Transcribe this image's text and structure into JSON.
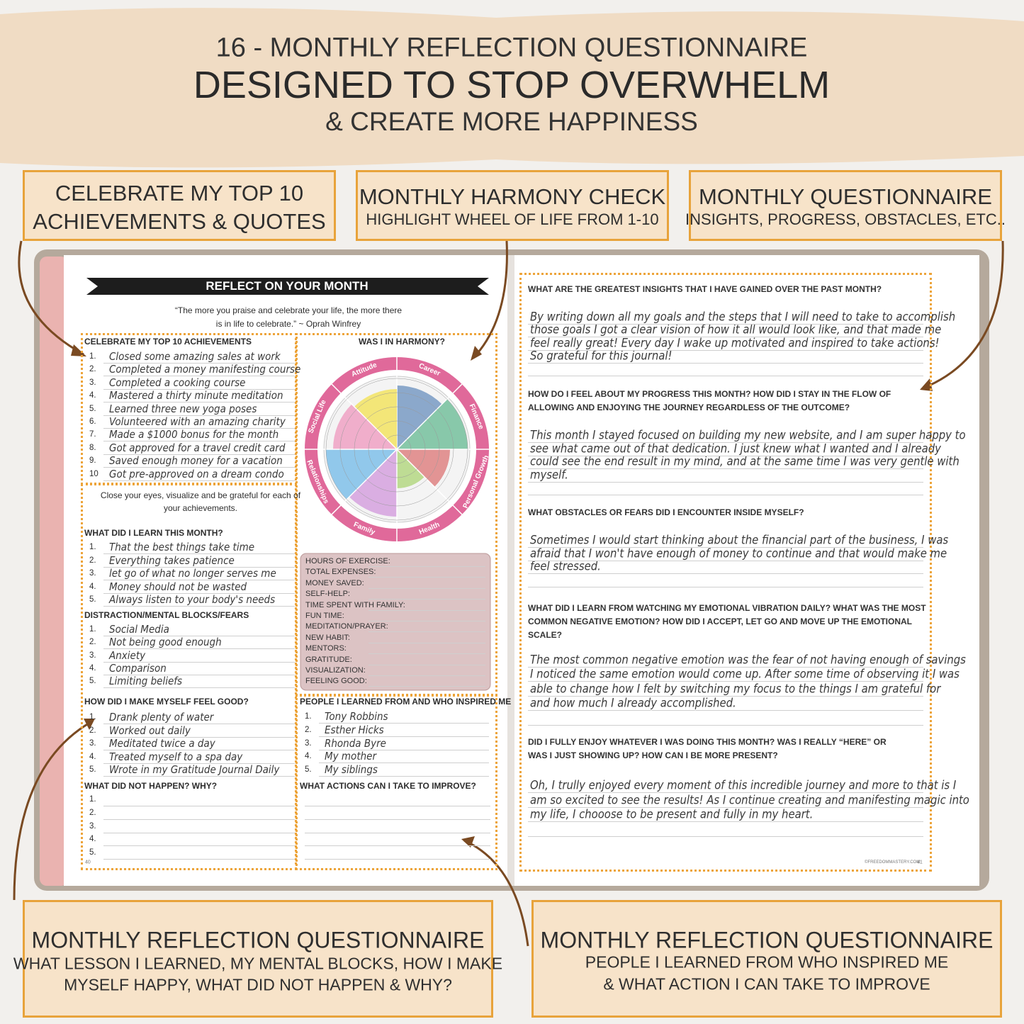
{
  "header": {
    "line1": "16 - MONTHLY REFLECTION QUESTIONNAIRE",
    "line2": "DESIGNED TO STOP OVERWHELM",
    "line3": "& CREATE MORE HAPPINESS"
  },
  "top_callouts": [
    {
      "title_lines": [
        "CELEBRATE MY TOP 10",
        "ACHIEVEMENTS & QUOTES"
      ],
      "subtitle_lines": []
    },
    {
      "title_lines": [
        "MONTHLY HARMONY CHECK"
      ],
      "subtitle_lines": [
        "HIGHLIGHT WHEEL OF LIFE FROM 1-10"
      ]
    },
    {
      "title_lines": [
        "MONTHLY QUESTIONNAIRE"
      ],
      "subtitle_lines": [
        "INSIGHTS, PROGRESS, OBSTACLES, ETC.."
      ]
    }
  ],
  "bottom_callouts": [
    {
      "title_lines": [
        "MONTHLY REFLECTION QUESTIONNAIRE"
      ],
      "subtitle_lines": [
        "WHAT LESSON I LEARNED, MY MENTAL BLOCKS, HOW I MAKE",
        "MYSELF HAPPY, WHAT DID NOT HAPPEN & WHY?"
      ]
    },
    {
      "title_lines": [
        "MONTHLY REFLECTION QUESTIONNAIRE"
      ],
      "subtitle_lines": [
        "PEOPLE I LEARNED FROM WHO INSPIRED ME",
        "& WHAT ACTION I CAN TAKE TO IMPROVE"
      ]
    }
  ],
  "left_page": {
    "banner": "REFLECT ON YOUR MONTH",
    "quote_lines": [
      "“The more you praise and celebrate your life, the more there",
      "is in life to celebrate.” ~ Oprah Winfrey"
    ],
    "achievements": {
      "heading": "CELEBRATE MY TOP 10 ACHIEVEMENTS",
      "items": [
        {
          "n": "1.",
          "text": "Closed some amazing sales at work"
        },
        {
          "n": "2.",
          "text": "Completed a money manifesting course"
        },
        {
          "n": "3.",
          "text": "Completed a cooking course"
        },
        {
          "n": "4.",
          "text": "Mastered a thirty minute meditation"
        },
        {
          "n": "5.",
          "text": "Learned three new yoga poses"
        },
        {
          "n": "6.",
          "text": "Volunteered with an amazing charity"
        },
        {
          "n": "7.",
          "text": "Made a $1000 bonus for the month"
        },
        {
          "n": "8.",
          "text": "Got approved for a travel credit card"
        },
        {
          "n": "9.",
          "text": "Saved enough money for a vacation"
        },
        {
          "n": "10",
          "text": "Got pre-approved on a dream condo"
        }
      ]
    },
    "close_eyes_lines": [
      "Close your eyes, visualize and be grateful for each of",
      "your achievements."
    ],
    "learn": {
      "heading": "WHAT DID I LEARN THIS MONTH?",
      "items": [
        {
          "n": "1.",
          "text": "That the best things take time"
        },
        {
          "n": "2.",
          "text": "Everything takes patience"
        },
        {
          "n": "3.",
          "text": "let go of what no longer serves me"
        },
        {
          "n": "4.",
          "text": "Money should not be wasted"
        },
        {
          "n": "5.",
          "text": "Always listen to your body's needs"
        }
      ]
    },
    "blocks": {
      "heading": "DISTRACTION/MENTAL BLOCKS/FEARS",
      "items": [
        {
          "n": "1.",
          "text": "Social Media"
        },
        {
          "n": "2.",
          "text": "Not being good enough"
        },
        {
          "n": "3.",
          "text": "Anxiety"
        },
        {
          "n": "4.",
          "text": "Comparison"
        },
        {
          "n": "5.",
          "text": "Limiting beliefs"
        }
      ]
    },
    "feel_good": {
      "heading": "HOW DID I MAKE MYSELF FEEL GOOD?",
      "items": [
        {
          "n": "1.",
          "text": "Drank plenty of water"
        },
        {
          "n": "2.",
          "text": "Worked out daily"
        },
        {
          "n": "3.",
          "text": "Meditated twice a day"
        },
        {
          "n": "4.",
          "text": "Treated myself to a spa day"
        },
        {
          "n": "5.",
          "text": "Wrote in my Gratitude Journal Daily"
        }
      ]
    },
    "not_happen": {
      "heading": "WHAT DID NOT HAPPEN?  WHY?",
      "items": [
        {
          "n": "1."
        },
        {
          "n": "2."
        },
        {
          "n": "3."
        },
        {
          "n": "4."
        },
        {
          "n": "5."
        }
      ]
    },
    "harmony": {
      "heading": "WAS I IN HARMONY?",
      "labels": [
        "Career",
        "Finance",
        "Personal Growth",
        "Health",
        "Family",
        "Relationships",
        "Social Life",
        "Attitude"
      ]
    },
    "habits": [
      "HOURS OF EXERCISE:",
      "TOTAL EXPENSES:",
      "MONEY SAVED:",
      "SELF-HELP:",
      "TIME SPENT WITH FAMILY:",
      "FUN TIME:",
      "MEDITATION/PRAYER:",
      "NEW HABIT:",
      "MENTORS:",
      "GRATITUDE:",
      "VISUALIZATION:",
      "FEELING GOOD:"
    ],
    "people": {
      "heading": "PEOPLE I LEARNED FROM AND WHO INSPIRED ME",
      "items": [
        {
          "n": "1.",
          "text": "Tony Robbins"
        },
        {
          "n": "2.",
          "text": "Esther Hicks"
        },
        {
          "n": "3.",
          "text": "Rhonda Byre"
        },
        {
          "n": "4.",
          "text": "My mother"
        },
        {
          "n": "5.",
          "text": "My siblings"
        }
      ]
    },
    "actions": {
      "heading": "WHAT ACTIONS CAN I TAKE TO IMPROVE?"
    },
    "page_number": "40"
  },
  "right_page": {
    "questions": [
      {
        "lines": [
          "WHAT ARE THE GREATEST INSIGHTS THAT I HAVE GAINED OVER THE PAST MONTH?"
        ],
        "answer": [
          "By writing down all my goals and the steps that I will need to take to accomplish",
          "those goals I got a clear vision of how it all would look like, and that made me",
          "feel really great! Every day I wake up motivated and inspired to take actions!",
          "So grateful for this journal!"
        ]
      },
      {
        "lines": [
          "HOW DO I FEEL ABOUT MY PROGRESS THIS MONTH? HOW DID I STAY IN THE FLOW OF",
          "ALLOWING AND ENJOYING THE JOURNEY REGARDLESS OF THE OUTCOME?"
        ],
        "answer": [
          "This month I stayed focused on building my new website, and I am super happy to",
          "see what came out of that dedication. I just knew what I wanted and I already",
          "could see the end result in my mind, and at the same time I was very gentle with",
          "myself."
        ]
      },
      {
        "lines": [
          "WHAT OBSTACLES OR FEARS DID I ENCOUNTER INSIDE MYSELF?"
        ],
        "answer": [
          "Sometimes I would start thinking about the financial part of the business, I was",
          "afraid that I won't have enough of money to continue and that would make me",
          "feel stressed."
        ]
      },
      {
        "lines": [
          "WHAT DID I LEARN FROM WATCHING MY EMOTIONAL VIBRATION DAILY? WHAT WAS THE MOST",
          "COMMON NEGATIVE EMOTION? HOW DID I ACCEPT, LET GO AND MOVE UP THE EMOTIONAL",
          "SCALE?"
        ],
        "answer": [
          "The most common negative emotion was the fear of not having enough of savings",
          "I noticed the same emotion would come up. After some time of observing it I was",
          "able to change how I felt by switching my focus to the things I am grateful for",
          "and how much I already accomplished."
        ]
      },
      {
        "lines": [
          "DID I FULLY ENJOY WHATEVER I WAS DOING THIS MONTH? WAS I REALLY “HERE” OR",
          "WAS I JUST SHOWING UP? HOW CAN I BE MORE PRESENT?"
        ],
        "answer": [
          "Oh, I trully enjoyed every moment of this incredible journey and more to that is I",
          "am so excited to see the results! As I continue creating and manifesting magic into",
          "my life, I chooose to be present and fully in my heart."
        ]
      }
    ],
    "copyright": "©FREEDOMMASTERY.COM",
    "page_number": "41"
  }
}
